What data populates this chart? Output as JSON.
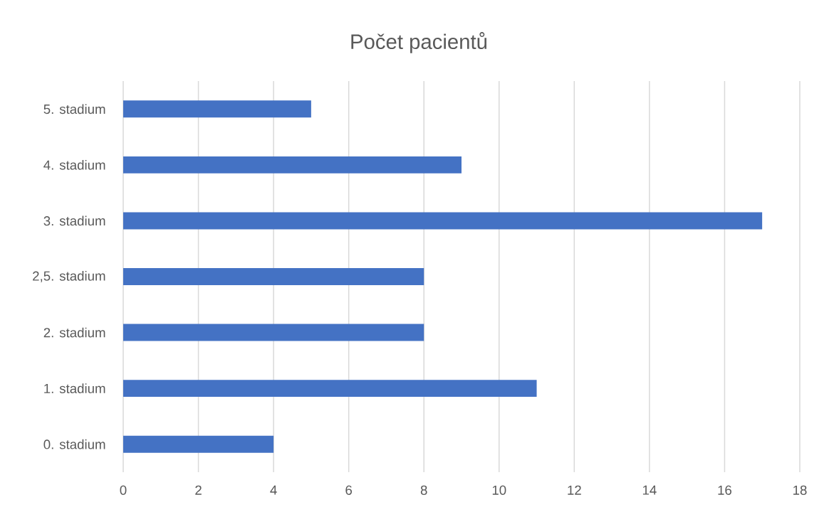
{
  "chart_data": {
    "type": "bar",
    "orientation": "horizontal",
    "title": "Počet pacientů",
    "categories": [
      "5. stadium",
      "4. stadium",
      "3. stadium",
      "2,5. stadium",
      "2. stadium",
      "1. stadium",
      "0. stadium"
    ],
    "values": [
      5,
      9,
      17,
      8,
      8,
      11,
      4
    ],
    "color": "#4472c4",
    "xlim": [
      0,
      18
    ],
    "xticks": [
      0,
      2,
      4,
      6,
      8,
      10,
      12,
      14,
      16,
      18
    ],
    "grid": "x"
  }
}
